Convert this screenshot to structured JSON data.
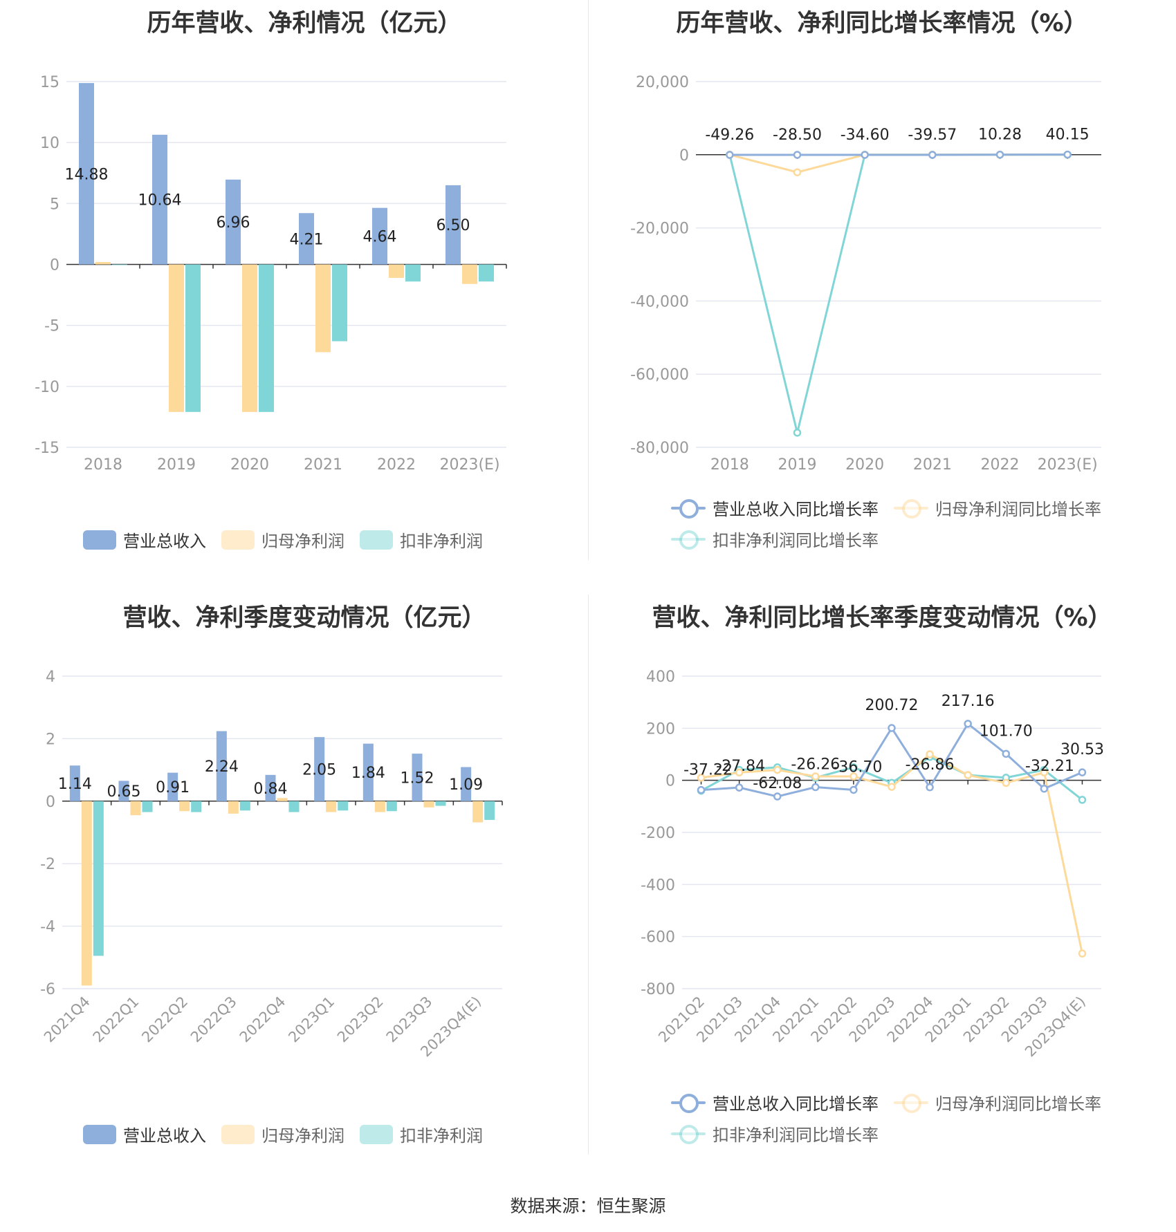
{
  "colors": {
    "revenue": "#8eaedc",
    "netprofit": "#fdd99a",
    "deducted": "#80d6d6",
    "grid": "#e4e6f0",
    "axis": "#333333",
    "tick": "#999999"
  },
  "footer": {
    "text": "数据来源：恒生聚源"
  },
  "charts": [
    {
      "title": "历年营收、净利情况（亿元）",
      "legend": [
        "营业总收入",
        "归母净利润",
        "扣非净利润"
      ],
      "chart_data": {
        "type": "bar",
        "categories": [
          "2018",
          "2019",
          "2020",
          "2021",
          "2022",
          "2023(E)"
        ],
        "yticks": [
          "15",
          "10",
          "5",
          "0",
          "-5",
          "-10",
          "-15"
        ],
        "ylim": [
          -15,
          15
        ],
        "series": [
          {
            "name": "营业总收入",
            "values": [
              14.88,
              10.64,
              6.96,
              4.21,
              4.64,
              6.5
            ],
            "labels": [
              "14.88",
              "10.64",
              "6.96",
              "4.21",
              "4.64",
              "6.50"
            ]
          },
          {
            "name": "归母净利润",
            "values": [
              0.2,
              -12.1,
              -12.1,
              -7.2,
              -1.1,
              -1.6
            ]
          },
          {
            "name": "扣非净利润",
            "values": [
              0.0,
              -12.1,
              -12.1,
              -6.3,
              -1.4,
              -1.4
            ]
          }
        ],
        "grid": true,
        "legend_position": "bottom"
      }
    },
    {
      "title": "历年营收、净利同比增长率情况（%）",
      "legend": [
        "营业总收入同比增长率",
        "归母净利润同比增长率",
        "扣非净利润同比增长率"
      ],
      "chart_data": {
        "type": "line",
        "categories": [
          "2018",
          "2019",
          "2020",
          "2021",
          "2022",
          "2023(E)"
        ],
        "yticks": [
          "20,000",
          "0",
          "-20,000",
          "-40,000",
          "-60,000",
          "-80,000"
        ],
        "ylim": [
          -80000,
          20000
        ],
        "series": [
          {
            "name": "营业总收入同比增长率",
            "values": [
              -49.26,
              -28.5,
              -34.6,
              -39.57,
              10.28,
              40.15
            ],
            "labels": [
              "-49.26",
              "-28.50",
              "-34.60",
              "-39.57",
              "10.28",
              "40.15"
            ]
          },
          {
            "name": "归母净利润同比增长率",
            "values": [
              0,
              -4800,
              0,
              0,
              0,
              0
            ]
          },
          {
            "name": "扣非净利润同比增长率",
            "values": [
              0,
              -76000,
              0,
              0,
              0,
              0
            ]
          }
        ],
        "grid": true,
        "legend_position": "bottom"
      }
    },
    {
      "title": "营收、净利季度变动情况（亿元）",
      "legend": [
        "营业总收入",
        "归母净利润",
        "扣非净利润"
      ],
      "chart_data": {
        "type": "bar",
        "categories": [
          "2021Q4",
          "2022Q1",
          "2022Q2",
          "2022Q3",
          "2022Q4",
          "2023Q1",
          "2023Q2",
          "2023Q3",
          "2023Q4(E)"
        ],
        "yticks": [
          "4",
          "2",
          "0",
          "-2",
          "-4",
          "-6"
        ],
        "ylim": [
          -6,
          4
        ],
        "series": [
          {
            "name": "营业总收入",
            "values": [
              1.14,
              0.65,
              0.91,
              2.24,
              0.84,
              2.05,
              1.84,
              1.52,
              1.09
            ],
            "labels": [
              "1.14",
              "0.65",
              "0.91",
              "2.24",
              "0.84",
              "2.05",
              "1.84",
              "1.52",
              "1.09"
            ]
          },
          {
            "name": "归母净利润",
            "values": [
              -5.9,
              -0.45,
              -0.32,
              -0.4,
              0.1,
              -0.35,
              -0.35,
              -0.2,
              -0.68
            ]
          },
          {
            "name": "扣非净利润",
            "values": [
              -4.95,
              -0.35,
              -0.35,
              -0.3,
              -0.35,
              -0.3,
              -0.32,
              -0.15,
              -0.6
            ]
          }
        ],
        "grid": true,
        "legend_position": "bottom"
      }
    },
    {
      "title": "营收、净利同比增长率季度变动情况（%）",
      "legend": [
        "营业总收入同比增长率",
        "归母净利润同比增长率",
        "扣非净利润同比增长率"
      ],
      "chart_data": {
        "type": "line",
        "categories": [
          "2021Q2",
          "2021Q3",
          "2021Q4",
          "2022Q1",
          "2022Q2",
          "2022Q3",
          "2022Q4",
          "2023Q1",
          "2023Q2",
          "2023Q3",
          "2023Q4(E)"
        ],
        "yticks": [
          "400",
          "200",
          "0",
          "-200",
          "-400",
          "-600",
          "-800"
        ],
        "ylim": [
          -800,
          400
        ],
        "series": [
          {
            "name": "营业总收入同比增长率",
            "values": [
              -37.22,
              -27.84,
              -62.08,
              -26.26,
              -36.7,
              200.72,
              -26.86,
              217.16,
              101.7,
              -32.21,
              30.53
            ],
            "labels": [
              "-37.22",
              "-27.84",
              "-62.08",
              "-26.26",
              "-36.70",
              "200.72",
              "-26.86",
              "217.16",
              "101.70",
              "-32.21",
              "30.53"
            ]
          },
          {
            "name": "归母净利润同比增长率",
            "values": [
              10,
              30,
              40,
              15,
              15,
              -25,
              100,
              20,
              -10,
              30,
              -665
            ]
          },
          {
            "name": "扣非净利润同比增长率",
            "values": [
              -40,
              40,
              50,
              10,
              50,
              -10,
              90,
              20,
              10,
              40,
              -75
            ]
          }
        ],
        "grid": true,
        "legend_position": "bottom"
      }
    }
  ]
}
